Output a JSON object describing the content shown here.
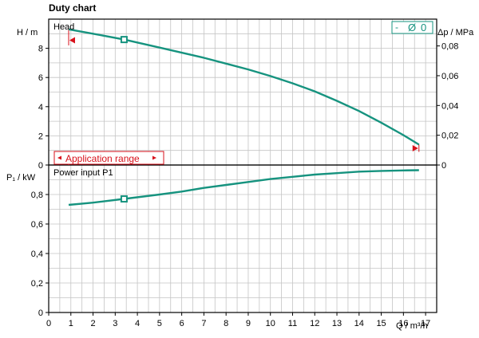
{
  "title": "Duty chart",
  "colors": {
    "curve": "#16937f",
    "range": "#d8111b",
    "grid": "#c4c4c4"
  },
  "legend": {
    "prefix": "-",
    "symbol": "Ø",
    "value": "0"
  },
  "application_range_label": "Application range",
  "chart_data": [
    {
      "type": "line",
      "panel": "top",
      "panel_label": "Head",
      "ylabel": "H / m",
      "y2label": "Δp / MPa",
      "ylim": [
        0,
        10
      ],
      "yticks": [
        "0",
        "2",
        "4",
        "6",
        "8"
      ],
      "y2lim": [
        0,
        0.098
      ],
      "y2ticks": [
        "0",
        "0,02",
        "0,04",
        "0,06",
        "0,08"
      ],
      "series": [
        {
          "x": [
            0.9,
            2,
            3.4,
            5,
            6,
            7,
            8,
            9,
            10,
            11,
            12,
            13,
            14,
            15,
            16,
            16.7
          ],
          "y": [
            9.3,
            9.0,
            8.6,
            8.05,
            7.7,
            7.35,
            6.95,
            6.55,
            6.1,
            5.6,
            5.05,
            4.4,
            3.7,
            2.9,
            2.05,
            1.4
          ]
        }
      ],
      "marker": {
        "x": 3.4,
        "y": 8.6
      },
      "application_range": [
        0.9,
        16.7
      ],
      "grid": true
    },
    {
      "type": "line",
      "panel": "bottom",
      "panel_label": "Power input P1",
      "ylabel": "P₁ / kW",
      "ylim": [
        0,
        1.0
      ],
      "yticks": [
        "0",
        "0,2",
        "0,4",
        "0,6",
        "0,8"
      ],
      "xlabel": "Q / m³/h",
      "xlim": [
        0,
        17.5
      ],
      "xticks": [
        "0",
        "1",
        "2",
        "3",
        "4",
        "5",
        "6",
        "7",
        "8",
        "9",
        "10",
        "11",
        "12",
        "13",
        "14",
        "15",
        "16",
        "17"
      ],
      "series": [
        {
          "x": [
            0.9,
            2,
            3.4,
            5,
            6,
            7,
            8,
            9,
            10,
            11,
            12,
            13,
            14,
            15,
            16,
            16.7
          ],
          "y": [
            0.73,
            0.745,
            0.77,
            0.8,
            0.82,
            0.845,
            0.865,
            0.885,
            0.905,
            0.92,
            0.935,
            0.945,
            0.955,
            0.96,
            0.963,
            0.965
          ]
        }
      ],
      "marker": {
        "x": 3.4,
        "y": 0.77
      },
      "grid": true
    }
  ]
}
